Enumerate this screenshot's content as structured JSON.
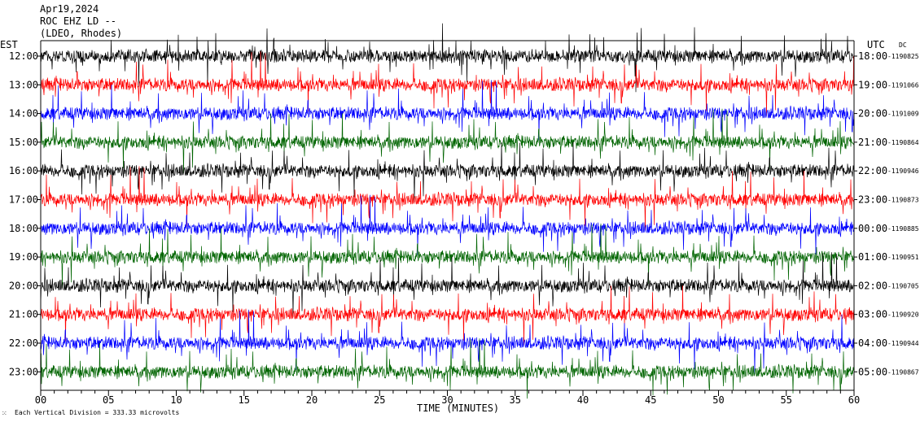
{
  "header": {
    "date": "Apr19,2024",
    "station": "ROC EHZ LD --",
    "network": "(LDEO, Rhodes)"
  },
  "left_zone_label": "EST",
  "right_zone_label": "UTC",
  "dc_label": "DC",
  "footer": {
    "scale_note": "Each Vertical Division =  333.33 microvolts",
    "glyph": "⁙"
  },
  "chart_data": {
    "type": "line",
    "title": "",
    "xlabel": "TIME (MINUTES)",
    "ylabel": "",
    "xlim": [
      0,
      60
    ],
    "x_ticks": [
      "00",
      "05",
      "10",
      "15",
      "20",
      "25",
      "30",
      "35",
      "40",
      "45",
      "50",
      "55",
      "60"
    ],
    "trace_colors": [
      "#000000",
      "#ff0000",
      "#0000ff",
      "#006400"
    ],
    "rows": [
      {
        "est": "12:00",
        "utc": "18:00",
        "dc": "1190825",
        "color": "#000000"
      },
      {
        "est": "13:00",
        "utc": "19:00",
        "dc": "1191066",
        "color": "#ff0000"
      },
      {
        "est": "14:00",
        "utc": "20:00",
        "dc": "1191009",
        "color": "#0000ff"
      },
      {
        "est": "15:00",
        "utc": "21:00",
        "dc": "1190864",
        "color": "#006400"
      },
      {
        "est": "16:00",
        "utc": "22:00",
        "dc": "1190946",
        "color": "#000000"
      },
      {
        "est": "17:00",
        "utc": "23:00",
        "dc": "1190873",
        "color": "#ff0000"
      },
      {
        "est": "18:00",
        "utc": "00:00",
        "dc": "1190885",
        "color": "#0000ff"
      },
      {
        "est": "19:00",
        "utc": "01:00",
        "dc": "1190951",
        "color": "#006400"
      },
      {
        "est": "20:00",
        "utc": "02:00",
        "dc": "1190705",
        "color": "#000000"
      },
      {
        "est": "21:00",
        "utc": "03:00",
        "dc": "1190920",
        "color": "#ff0000"
      },
      {
        "est": "22:00",
        "utc": "04:00",
        "dc": "1190944",
        "color": "#0000ff"
      },
      {
        "est": "23:00",
        "utc": "05:00",
        "dc": "1190867",
        "color": "#006400"
      }
    ]
  }
}
